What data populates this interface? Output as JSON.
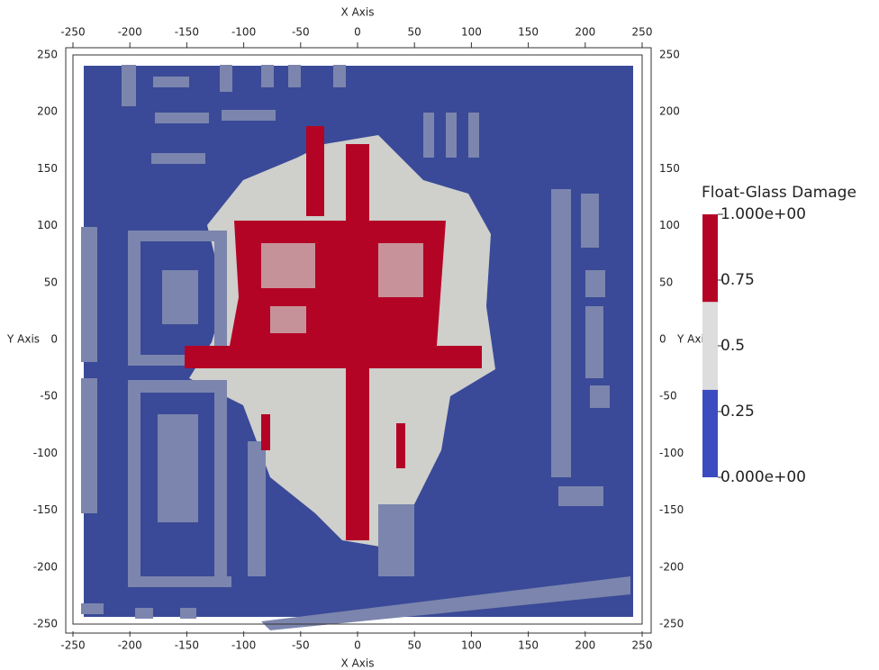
{
  "chart_data": {
    "type": "contour",
    "x_label": "X Axis",
    "y_label": "Y Axis",
    "xlim": [
      -250,
      250
    ],
    "ylim": [
      -250,
      250
    ],
    "xticks": [
      -250,
      -200,
      -150,
      -100,
      -50,
      0,
      50,
      100,
      150,
      200,
      250
    ],
    "yticks": [
      -250,
      -200,
      -150,
      -100,
      -50,
      0,
      50,
      100,
      150,
      200,
      250
    ],
    "colorbar": {
      "title": "Float-Glass Damage",
      "lim": [
        0,
        1
      ],
      "ticks": [
        {
          "value": 0,
          "label": "0.000e+00"
        },
        0.25,
        0.5,
        0.75,
        {
          "value": 1,
          "label": "1.000e+00"
        }
      ],
      "levels": [
        0,
        0.333,
        0.667,
        1
      ],
      "colors": [
        "#3b4cc0",
        "#dddddd",
        "#b40426"
      ]
    }
  }
}
